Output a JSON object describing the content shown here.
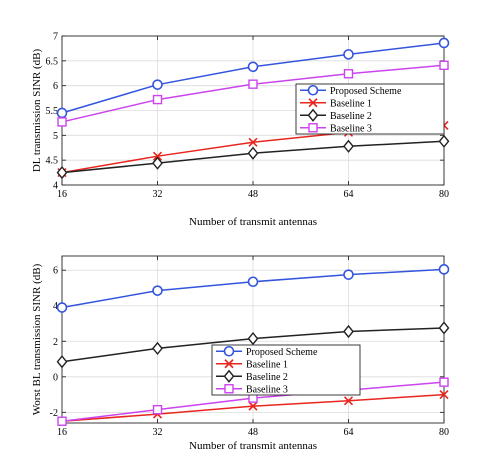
{
  "chart_data": [
    {
      "type": "line",
      "xlabel": "Number of transmit antennas",
      "ylabel": "DL transmission SINR (dB)",
      "x": [
        16,
        32,
        48,
        64,
        80
      ],
      "xticks": [
        "16",
        "32",
        "48",
        "64",
        "80"
      ],
      "ylim": [
        4,
        7
      ],
      "yticks": [
        4,
        4.5,
        5,
        5.5,
        6,
        6.5,
        7
      ],
      "ytick_labels": [
        "4",
        "4.5",
        "5",
        "5.5",
        "6",
        "6.5",
        "7"
      ],
      "grid": true,
      "legend_position": "right",
      "series": [
        {
          "name": "Proposed Scheme",
          "values": [
            5.45,
            6.02,
            6.38,
            6.63,
            6.86
          ],
          "color": "#3355dd",
          "marker": "circle"
        },
        {
          "name": "Baseline 1",
          "values": [
            4.25,
            4.58,
            4.86,
            5.06,
            5.2
          ],
          "color": "#e8251e",
          "marker": "x"
        },
        {
          "name": "Baseline 2",
          "values": [
            4.25,
            4.44,
            4.64,
            4.78,
            4.88
          ],
          "color": "#222222",
          "marker": "diamond"
        },
        {
          "name": "Baseline 3",
          "values": [
            5.27,
            5.72,
            6.03,
            6.24,
            6.41
          ],
          "color": "#cc44ee",
          "marker": "square"
        }
      ]
    },
    {
      "type": "line",
      "xlabel": "Number of transmit antennas",
      "ylabel": "Worst BL transmission SINR (dB)",
      "x": [
        16,
        32,
        48,
        64,
        80
      ],
      "xticks": [
        "16",
        "32",
        "48",
        "64",
        "80"
      ],
      "ylim": [
        -2.6,
        6.8
      ],
      "yticks": [
        -2,
        0,
        2,
        4,
        6
      ],
      "ytick_labels": [
        "-2",
        "0",
        "2",
        "4",
        "6"
      ],
      "grid": true,
      "legend_position": "center",
      "series": [
        {
          "name": "Proposed Scheme",
          "values": [
            3.9,
            4.85,
            5.35,
            5.75,
            6.05
          ],
          "color": "#3355dd",
          "marker": "circle"
        },
        {
          "name": "Baseline 1",
          "values": [
            -2.5,
            -2.1,
            -1.65,
            -1.35,
            -1.0
          ],
          "color": "#e8251e",
          "marker": "x"
        },
        {
          "name": "Baseline 2",
          "values": [
            0.85,
            1.6,
            2.15,
            2.55,
            2.75
          ],
          "color": "#222222",
          "marker": "diamond"
        },
        {
          "name": "Baseline 3",
          "values": [
            -2.5,
            -1.85,
            -1.2,
            -0.75,
            -0.3
          ],
          "color": "#cc44ee",
          "marker": "square"
        }
      ]
    }
  ]
}
